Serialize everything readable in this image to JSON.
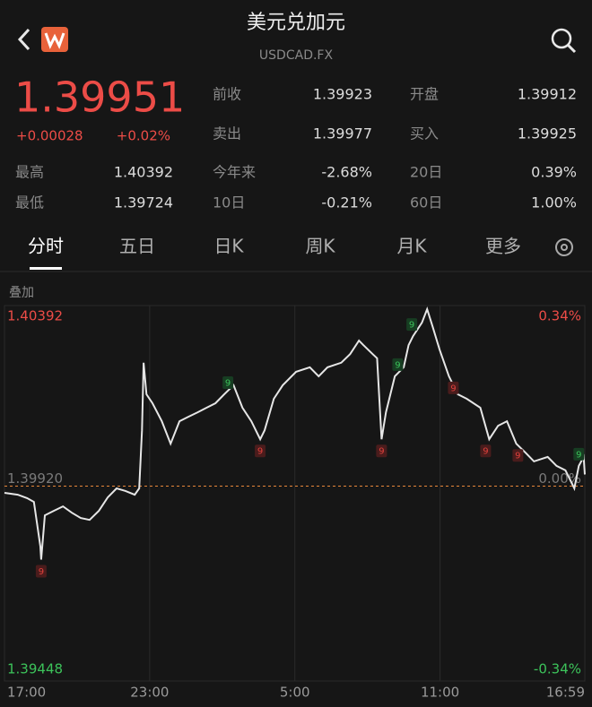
{
  "header": {
    "title": "美元兑加元",
    "subtitle": "USDCAD.FX"
  },
  "quote": {
    "price": "1.39951",
    "change": "+0.00028",
    "change_percent": "+0.02%"
  },
  "stats": [
    {
      "label": "前收",
      "value": "1.39923"
    },
    {
      "label": "开盘",
      "value": "1.39912"
    },
    {
      "label": "卖出",
      "value": "1.39977"
    },
    {
      "label": "买入",
      "value": "1.39925"
    },
    {
      "label": "最高",
      "value": "1.40392"
    },
    {
      "label": "今年来",
      "value": "-2.68%"
    },
    {
      "label": "20日",
      "value": "0.39%"
    },
    {
      "label": "最低",
      "value": "1.39724"
    },
    {
      "label": "10日",
      "value": "-0.21%"
    },
    {
      "label": "60日",
      "value": "1.00%"
    }
  ],
  "tabs": [
    "分时",
    "五日",
    "日K",
    "周K",
    "月K",
    "更多"
  ],
  "overlay_label": "叠加",
  "chart_data": {
    "type": "line",
    "color": "#e6e6e6",
    "x": [
      0,
      33,
      56,
      73,
      89,
      91,
      100,
      122,
      145,
      167,
      189,
      211,
      234,
      256,
      278,
      300,
      323,
      334,
      341,
      345,
      352,
      367,
      390,
      412,
      434,
      456,
      479,
      501,
      523,
      545,
      568,
      590,
      612,
      634,
      645,
      668,
      690,
      723,
      757,
      779,
      801,
      835,
      857,
      879,
      890,
      913,
      924,
      935,
      946,
      968,
      990,
      1002,
      1013,
      1035,
      1048,
      1062,
      1079,
      1102,
      1124,
      1146,
      1180,
      1202,
      1224,
      1246,
      1269,
      1291,
      1313,
      1347,
      1369,
      1391,
      1413,
      1424,
      1436,
      1439
    ],
    "values": [
      1.39902,
      1.39897,
      1.39888,
      1.39878,
      1.39759,
      1.39724,
      1.39842,
      1.39854,
      1.39866,
      1.39849,
      1.39835,
      1.3983,
      1.39854,
      1.3989,
      1.39914,
      1.39907,
      1.39897,
      1.39914,
      1.40069,
      1.40249,
      1.40165,
      1.40141,
      1.40093,
      1.40033,
      1.40093,
      1.40105,
      1.40117,
      1.40129,
      1.40141,
      1.40165,
      1.40189,
      1.40129,
      1.40093,
      1.40045,
      1.40069,
      1.40153,
      1.40189,
      1.40225,
      1.40237,
      1.40213,
      1.40237,
      1.40249,
      1.40272,
      1.40308,
      1.40296,
      1.40272,
      1.40261,
      1.40045,
      1.40117,
      1.40213,
      1.40237,
      1.40296,
      1.4032,
      1.40356,
      1.40392,
      1.40344,
      1.40284,
      1.40213,
      1.40165,
      1.40153,
      1.40129,
      1.40045,
      1.40081,
      1.40093,
      1.40033,
      1.4001,
      1.39986,
      1.39998,
      1.39974,
      1.39962,
      1.39914,
      1.39974,
      1.39998,
      1.39951
    ],
    "xlim": [
      0,
      1439
    ],
    "xticks": [
      {
        "value": 0,
        "label": "17:00"
      },
      {
        "value": 360,
        "label": "23:00"
      },
      {
        "value": 720,
        "label": "5:00"
      },
      {
        "value": 1080,
        "label": "11:00"
      },
      {
        "value": 1439,
        "label": "16:59"
      }
    ],
    "ylim": [
      1.39448,
      1.40392
    ],
    "yticks": [
      1.40392,
      {
        "value": 1.3992,
        "label": "1.39920"
      },
      1.39448
    ],
    "y2lim": [
      -0.34,
      0.34
    ],
    "y2ticks": [
      {
        "value": 0.34,
        "label": "0.34%"
      },
      {
        "value": 0,
        "label": "0.00%"
      },
      {
        "value": -0.34,
        "label": "-0.34%"
      }
    ],
    "markers": [
      {
        "x": 91,
        "label": "9",
        "color": "#e0413c"
      },
      {
        "x": 554,
        "label": "9",
        "color": "#3cc35a"
      },
      {
        "x": 634,
        "label": "9",
        "color": "#e0413c"
      },
      {
        "x": 935,
        "label": "9",
        "color": "#e0413c"
      },
      {
        "x": 975,
        "label": "9",
        "color": "#3cc35a"
      },
      {
        "x": 1010,
        "label": "9",
        "color": "#3cc35a"
      },
      {
        "x": 1113,
        "label": "9",
        "color": "#e0413c"
      },
      {
        "x": 1193,
        "label": "9",
        "color": "#e0413c"
      },
      {
        "x": 1273,
        "label": "9",
        "color": "#e0413c"
      },
      {
        "x": 1424,
        "label": "9",
        "color": "#3cc35a"
      }
    ]
  }
}
